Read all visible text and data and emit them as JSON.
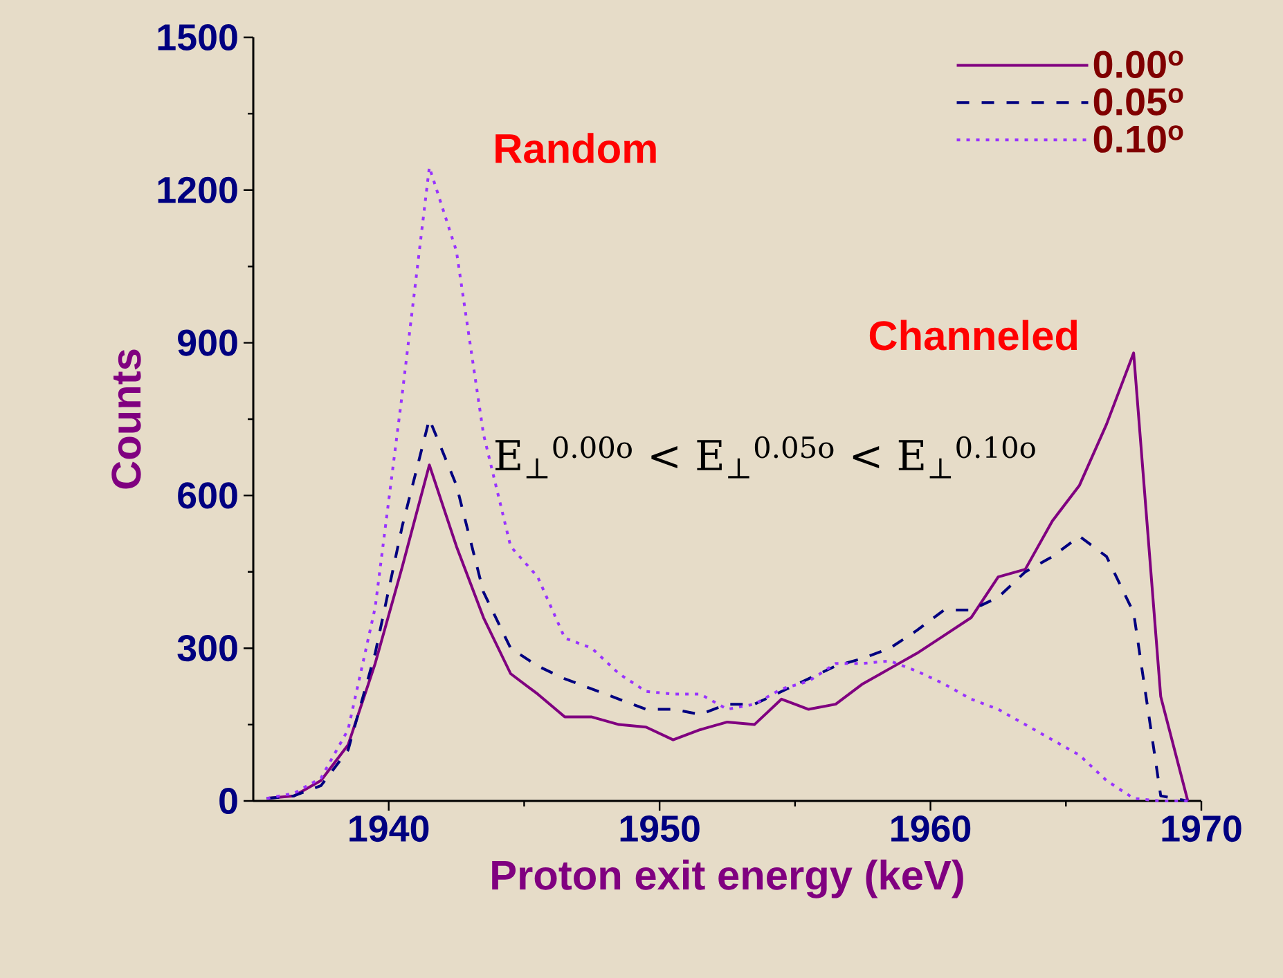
{
  "chart_data": {
    "type": "line",
    "xlabel": "Proton exit energy (keV)",
    "ylabel": "Counts",
    "xlim": [
      1935,
      1970
    ],
    "xticks": [
      1940,
      1950,
      1960,
      1970
    ],
    "ylim": [
      0,
      1500
    ],
    "yticks": [
      0,
      300,
      600,
      900,
      1200,
      1500
    ],
    "legend": "top right",
    "annotations": [
      "Random",
      "Channeled",
      "E$_{⊥}$$^{0.00o}$ < E$_{⊥}$$^{0.05o}$ < E$_{⊥}$$^{0.10o}$"
    ],
    "series": [
      {
        "name": "0.00$^{o}$",
        "color": "#800080",
        "line_style": "solid",
        "x": [
          1935.5,
          1936.5,
          1937.5,
          1938.5,
          1939.5,
          1940.5,
          1941.5,
          1942.5,
          1943.5,
          1944.5,
          1945.5,
          1946.5,
          1947.5,
          1948.5,
          1949.5,
          1950.5,
          1951.5,
          1952.5,
          1953.5,
          1954.5,
          1955.5,
          1956.5,
          1957.5,
          1958.5,
          1959.5,
          1960.5,
          1961.5,
          1962.5,
          1963.5,
          1964.5,
          1965.5,
          1966.5,
          1967.5,
          1968.5,
          1969.5
        ],
        "values": [
          5,
          10,
          40,
          110,
          270,
          460,
          660,
          500,
          360,
          250,
          210,
          165,
          165,
          150,
          145,
          120,
          140,
          155,
          150,
          200,
          180,
          190,
          230,
          260,
          290,
          325,
          360,
          440,
          455,
          550,
          620,
          740,
          880,
          205,
          0
        ]
      },
      {
        "name": "0.05$^{o}$",
        "color": "#000080",
        "line_style": "dashed",
        "x": [
          1935.5,
          1936.5,
          1937.5,
          1938.5,
          1939.5,
          1940.5,
          1941.5,
          1942.5,
          1943.5,
          1944.5,
          1945.5,
          1946.5,
          1947.5,
          1948.5,
          1949.5,
          1950.5,
          1951.5,
          1952.5,
          1953.5,
          1954.5,
          1955.5,
          1956.5,
          1957.5,
          1958.5,
          1959.5,
          1960.5,
          1961.5,
          1962.5,
          1963.5,
          1964.5,
          1965.5,
          1966.5,
          1967.5,
          1968.5,
          1969.5
        ],
        "values": [
          5,
          10,
          30,
          100,
          290,
          540,
          750,
          620,
          410,
          300,
          265,
          240,
          220,
          200,
          180,
          180,
          170,
          190,
          190,
          215,
          240,
          265,
          280,
          300,
          335,
          375,
          375,
          400,
          450,
          480,
          520,
          480,
          370,
          10,
          0
        ]
      },
      {
        "name": "0.10$^{o}$",
        "color": "#9933ff",
        "line_style": "dotted",
        "x": [
          1935.5,
          1936.5,
          1937.5,
          1938.5,
          1939.5,
          1940.5,
          1941.5,
          1942.5,
          1943.5,
          1944.5,
          1945.5,
          1946.5,
          1947.5,
          1948.5,
          1949.5,
          1950.5,
          1951.5,
          1952.5,
          1953.5,
          1954.5,
          1955.5,
          1956.5,
          1957.5,
          1958.5,
          1959.5,
          1960.5,
          1961.5,
          1962.5,
          1963.5,
          1964.5,
          1965.5,
          1966.5,
          1967.5,
          1968.5,
          1969.5
        ],
        "values": [
          5,
          15,
          45,
          140,
          380,
          800,
          1245,
          1080,
          720,
          500,
          440,
          320,
          300,
          250,
          215,
          210,
          210,
          180,
          190,
          220,
          235,
          270,
          270,
          275,
          255,
          230,
          200,
          180,
          150,
          120,
          90,
          40,
          5,
          0,
          0
        ]
      }
    ]
  }
}
